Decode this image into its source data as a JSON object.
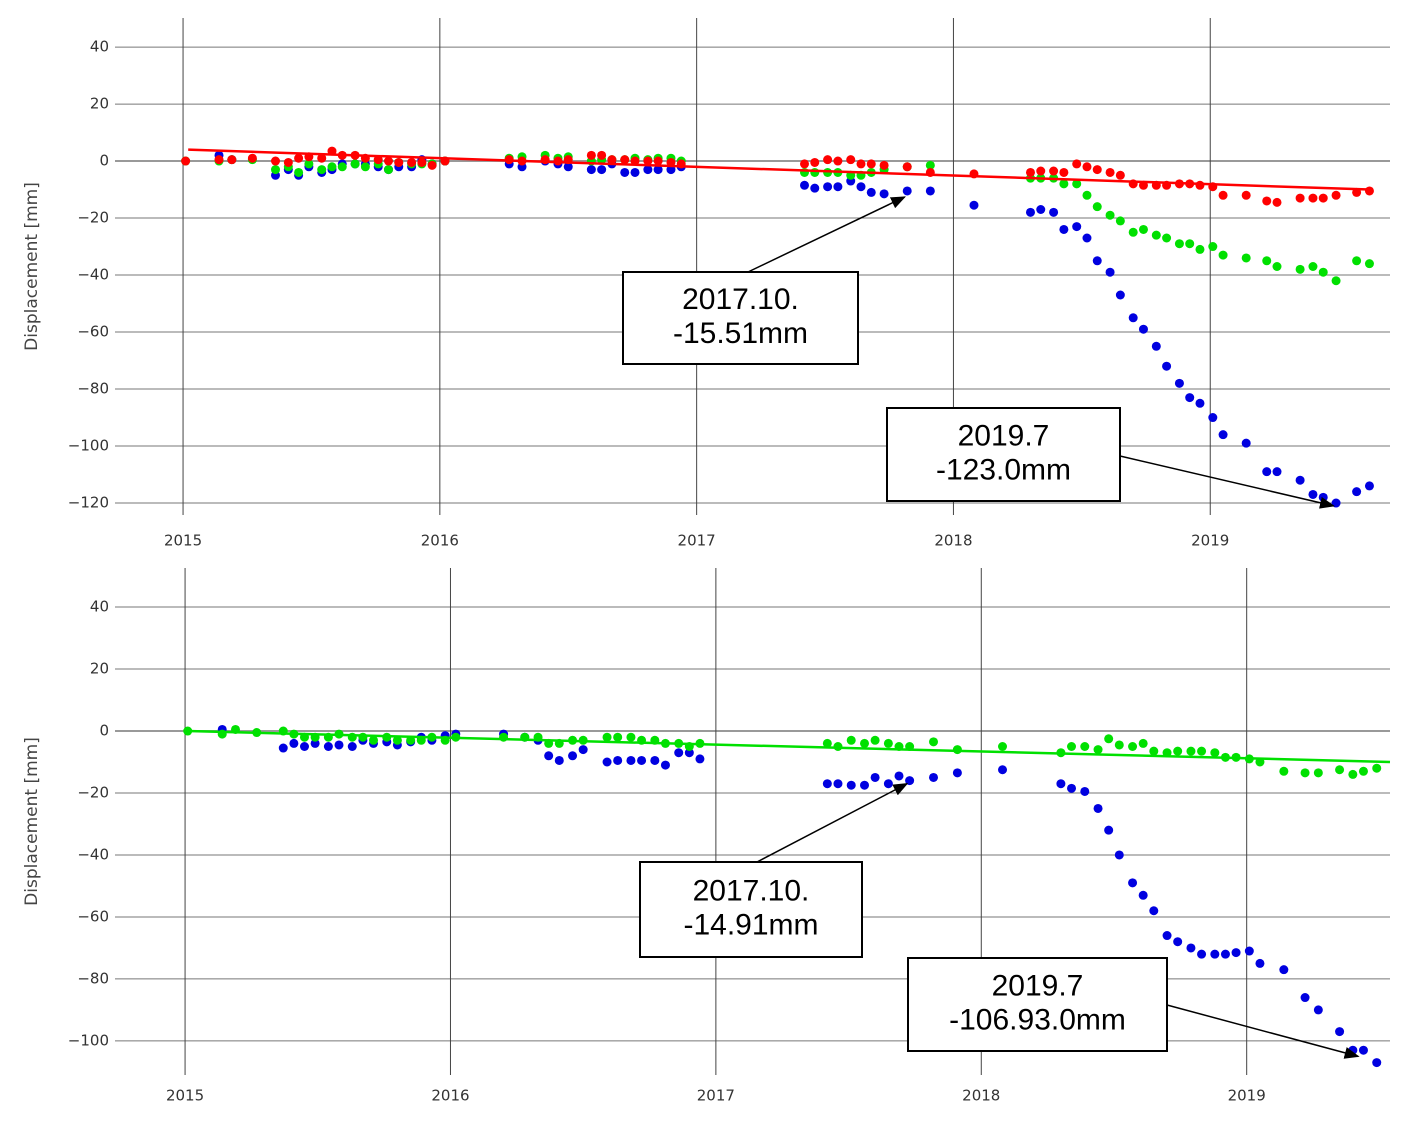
{
  "chart_data": [
    {
      "type": "scatter",
      "y_label": "Displacement [mm]",
      "xlim": [
        2014.735,
        2019.7
      ],
      "xticks": [
        2015,
        2016,
        2017,
        2018,
        2019
      ],
      "ylim": [
        -124.2,
        50.2
      ],
      "yticks": [
        {
          "value": -120,
          "label": "−120"
        },
        {
          "value": -100,
          "label": "−100"
        },
        {
          "value": -80,
          "label": "−80"
        },
        {
          "value": -60,
          "label": "−60"
        },
        {
          "value": -40,
          "label": "−40"
        },
        {
          "value": -20,
          "label": "−20"
        },
        0,
        20,
        40
      ],
      "grid": true,
      "x": [
        2015.01,
        2015.14,
        2015.19,
        2015.27,
        2015.36,
        2015.41,
        2015.45,
        2015.49,
        2015.54,
        2015.58,
        2015.62,
        2015.67,
        2015.71,
        2015.76,
        2015.8,
        2015.84,
        2015.89,
        2015.93,
        2015.97,
        2016.02,
        2016.27,
        2016.32,
        2016.41,
        2016.46,
        2016.5,
        2016.59,
        2016.63,
        2016.67,
        2016.72,
        2016.76,
        2016.81,
        2016.85,
        2016.9,
        2016.94,
        2017.42,
        2017.46,
        2017.51,
        2017.55,
        2017.6,
        2017.64,
        2017.68,
        2017.73,
        2017.82,
        2017.91,
        2018.08,
        2018.3,
        2018.34,
        2018.39,
        2018.43,
        2018.48,
        2018.52,
        2018.56,
        2018.61,
        2018.65,
        2018.7,
        2018.74,
        2018.79,
        2018.83,
        2018.88,
        2018.92,
        2018.96,
        2019.01,
        2019.05,
        2019.14,
        2019.22,
        2019.26,
        2019.35,
        2019.4,
        2019.44,
        2019.49,
        2019.57,
        2019.62
      ],
      "series": [
        {
          "color": "#0000e0",
          "values": [
            null,
            2,
            0.5,
            null,
            -5,
            -3,
            -5,
            -2,
            -4,
            -3,
            -1,
            -1,
            -1,
            -2,
            -3,
            -2,
            -2,
            0.5,
            -1,
            0,
            -1,
            -2,
            0,
            -1,
            -2,
            -3,
            -3,
            -1,
            -4,
            -4,
            -3,
            -3,
            -3,
            -2,
            -8.5,
            -9.5,
            -9,
            -9,
            -7,
            -9,
            -11,
            -11.5,
            -10.5,
            -10.5,
            -15.5,
            -18,
            -17,
            -18,
            -24,
            -23,
            -27,
            -35,
            -39,
            -47,
            -55,
            -59,
            -65,
            -72,
            -78,
            -83,
            -85,
            -90,
            -96,
            -99,
            -109,
            -109,
            -112,
            -117,
            -118,
            -120,
            -116,
            -114
          ]
        },
        {
          "color": "#00e000",
          "values": [
            0,
            0,
            0.5,
            0.5,
            -3,
            -2,
            -4,
            -1,
            -3,
            -2,
            -2,
            -1,
            -2,
            -1,
            -3,
            -0.5,
            -1,
            -1,
            -1,
            0,
            1,
            1.5,
            2,
            1,
            1.5,
            0,
            0.5,
            0.5,
            0.5,
            1,
            0.5,
            1,
            1,
            0,
            -4,
            -4,
            -4,
            -4,
            -5,
            -5,
            -4,
            -3,
            -2,
            -1.5,
            null,
            -6,
            -6,
            -6,
            -8,
            -8,
            -12,
            -16,
            -19,
            -21,
            -25,
            -24,
            -26,
            -27,
            -29,
            -29,
            -31,
            -30,
            -33,
            -34,
            -35,
            -37,
            -38,
            -37,
            -39,
            -42,
            -35,
            -36
          ]
        },
        {
          "color": "#ff0000",
          "values": [
            0,
            0.5,
            0.5,
            1,
            0,
            -0.5,
            1,
            1.5,
            1,
            3.5,
            2,
            2,
            1,
            0.5,
            0,
            -0.5,
            -0.5,
            -0.5,
            -1.5,
            0,
            0.5,
            0,
            0.5,
            0,
            0.5,
            2,
            2,
            0.5,
            0.5,
            0,
            0,
            0,
            -0.5,
            -1,
            -1,
            -0.5,
            0.5,
            0,
            0.5,
            -1,
            -1,
            -1.5,
            -2,
            -4,
            -4.5,
            -4,
            -3.5,
            -3.5,
            -4,
            -1,
            -2,
            -3,
            -4,
            -5,
            -8,
            -8.5,
            -8.5,
            -8.5,
            -8,
            -8,
            -8.5,
            -9,
            -12,
            -12,
            -14,
            -14.5,
            -13,
            -13,
            -13,
            -12,
            -11,
            -10.5
          ]
        },
        {
          "type": "line",
          "color": "#ff0000",
          "x": [
            2015.02,
            2019.62
          ],
          "values": [
            4,
            -10
          ]
        }
      ],
      "annotations": [
        {
          "text": [
            "2017.10.",
            "-15.51mm"
          ],
          "x": 2017.81,
          "y": -12.6
        },
        {
          "text": [
            "2019.7",
            "-123.0mm"
          ],
          "x": 2019.48,
          "y": -121
        }
      ]
    },
    {
      "type": "scatter",
      "y_label": "Displacement [mm]",
      "xlim": [
        2014.736,
        2019.54
      ],
      "xticks": [
        2015,
        2016,
        2017,
        2018,
        2019
      ],
      "ylim": [
        -111,
        52.6
      ],
      "yticks": [
        {
          "value": -100,
          "label": "−100"
        },
        {
          "value": -80,
          "label": "−80"
        },
        {
          "value": -60,
          "label": "−60"
        },
        {
          "value": -40,
          "label": "−40"
        },
        {
          "value": -20,
          "label": "−20"
        },
        0,
        20,
        40
      ],
      "grid": true,
      "x": [
        2015.01,
        2015.14,
        2015.19,
        2015.27,
        2015.37,
        2015.41,
        2015.45,
        2015.49,
        2015.54,
        2015.58,
        2015.63,
        2015.67,
        2015.71,
        2015.76,
        2015.8,
        2015.85,
        2015.89,
        2015.93,
        2015.98,
        2016.02,
        2016.2,
        2016.28,
        2016.33,
        2016.37,
        2016.41,
        2016.46,
        2016.5,
        2016.59,
        2016.63,
        2016.68,
        2016.72,
        2016.77,
        2016.81,
        2016.86,
        2016.9,
        2016.94,
        2017.42,
        2017.46,
        2017.51,
        2017.56,
        2017.6,
        2017.65,
        2017.69,
        2017.73,
        2017.82,
        2017.91,
        2018.08,
        2018.3,
        2018.34,
        2018.39,
        2018.44,
        2018.48,
        2018.52,
        2018.57,
        2018.61,
        2018.65,
        2018.7,
        2018.74,
        2018.79,
        2018.83,
        2018.88,
        2018.92,
        2018.96,
        2019.01,
        2019.05,
        2019.14,
        2019.22,
        2019.27,
        2019.35,
        2019.4,
        2019.44,
        2019.49
      ],
      "series": [
        {
          "color": "#0000e0",
          "values": [
            null,
            0.5,
            null,
            null,
            -5.5,
            -4,
            -5,
            -4,
            -5,
            -4.5,
            -5,
            -3,
            -4,
            -3.5,
            -4.5,
            -3.5,
            -2,
            -3,
            -1.5,
            -1,
            -1,
            -2,
            -3,
            -8,
            -9.5,
            -8,
            -6,
            -10,
            -9.5,
            -9.5,
            -9.5,
            -9.5,
            -11,
            -7,
            -7,
            -9,
            -17,
            -17,
            -17.5,
            -17.5,
            -15,
            -17,
            -14.5,
            -16,
            -15,
            -13.5,
            -12.5,
            -17,
            -18.5,
            -19.5,
            -25,
            -32,
            -40,
            -49,
            -53,
            -58,
            -66,
            -68,
            -70,
            -72,
            -72,
            -72,
            -71.5,
            -71,
            -75,
            -77,
            -86,
            -90,
            -97,
            -103,
            -103,
            -107
          ]
        },
        {
          "color": "#00e000",
          "values": [
            0,
            -1,
            0.5,
            -0.5,
            0,
            -1,
            -2,
            -2,
            -2,
            -1,
            -2,
            -2,
            -3,
            -2,
            -3,
            -3,
            -3,
            -2,
            -3,
            -2,
            -2,
            -2,
            -2,
            -4,
            -4,
            -3,
            -3,
            -2,
            -2,
            -2,
            -3,
            -3,
            -4,
            -4,
            -5,
            -4,
            -4,
            -5,
            -3,
            -4,
            -3,
            -4,
            -5,
            -5,
            -3.5,
            -6,
            -5,
            -7,
            -5,
            -5,
            -6,
            -2.5,
            -4.5,
            -5,
            -4,
            -6.5,
            -7,
            -6.5,
            -6.5,
            -6.5,
            -7,
            -8.5,
            -8.5,
            -9,
            -10,
            -13,
            -13.5,
            -13.5,
            -12.5,
            -14,
            -13,
            -12
          ]
        },
        {
          "type": "line",
          "color": "#00e000",
          "x": [
            2015.01,
            2019.54
          ],
          "values": [
            0,
            -10
          ]
        }
      ],
      "annotations": [
        {
          "text": [
            "2017.10.",
            "-14.91mm"
          ],
          "x": 2017.72,
          "y": -17
        },
        {
          "text": [
            "2019.7",
            "-106.93.0mm"
          ],
          "x": 2019.42,
          "y": -105
        }
      ]
    }
  ]
}
